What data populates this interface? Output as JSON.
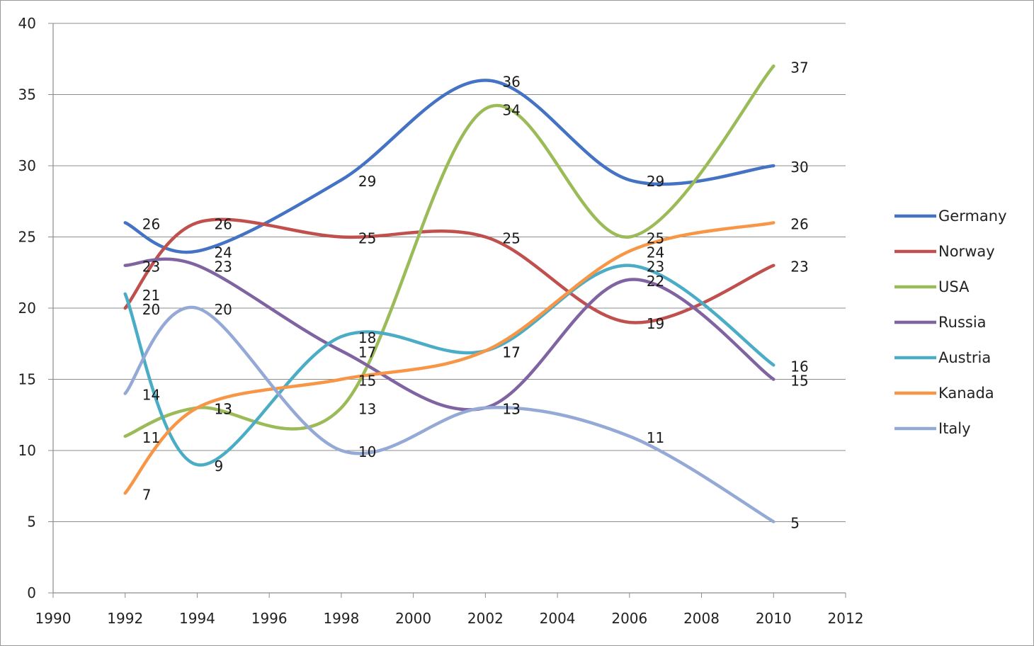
{
  "chart_data": {
    "type": "line",
    "smooth": true,
    "title": "",
    "xlabel": "",
    "ylabel": "",
    "xlim": [
      1990,
      2012
    ],
    "ylim": [
      0,
      40
    ],
    "xticks": [
      1990,
      1992,
      1994,
      1996,
      1998,
      2000,
      2002,
      2004,
      2006,
      2008,
      2010,
      2012
    ],
    "yticks": [
      0,
      5,
      10,
      15,
      20,
      25,
      30,
      35,
      40
    ],
    "grid": "horizontal",
    "legend": "right",
    "x": [
      1992,
      1994,
      1998,
      2002,
      2006,
      2010
    ],
    "series": [
      {
        "name": "Germany",
        "color": "#4472C4",
        "values": [
          26,
          24,
          29,
          36,
          29,
          30
        ]
      },
      {
        "name": "Norway",
        "color": "#C0504D",
        "values": [
          20,
          26,
          25,
          25,
          19,
          23
        ]
      },
      {
        "name": "USA",
        "color": "#9BBB59",
        "values": [
          11,
          13,
          13,
          34,
          25,
          37
        ]
      },
      {
        "name": "Russia",
        "color": "#8064A2",
        "values": [
          23,
          23,
          17,
          13,
          22,
          15
        ]
      },
      {
        "name": "Austria",
        "color": "#4BACC6",
        "values": [
          21,
          9,
          18,
          17,
          23,
          16
        ]
      },
      {
        "name": "Kanada",
        "color": "#F79646",
        "values": [
          7,
          13,
          15,
          17,
          24,
          26
        ]
      },
      {
        "name": "Italy",
        "color": "#95A9D6",
        "values": [
          14,
          20,
          10,
          13,
          11,
          5
        ]
      }
    ]
  }
}
